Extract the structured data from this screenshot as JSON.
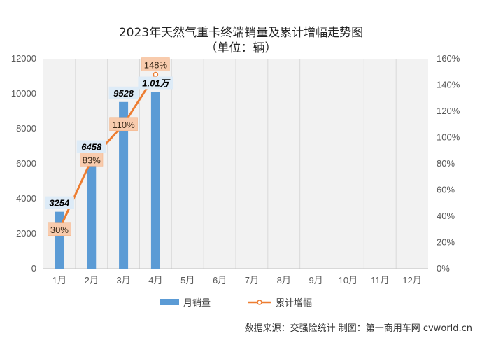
{
  "chart_data": {
    "type": "bar+line",
    "title": "2023年天然气重卡终端销量及累计增幅走势图",
    "subtitle": "（单位：辆）",
    "categories": [
      "1月",
      "2月",
      "3月",
      "4月",
      "5月",
      "6月",
      "7月",
      "8月",
      "9月",
      "10月",
      "11月",
      "12月"
    ],
    "series": [
      {
        "name": "月销量",
        "type": "bar",
        "axis": "left",
        "color": "#5b9bd5",
        "values": [
          3254,
          6458,
          9528,
          10100,
          null,
          null,
          null,
          null,
          null,
          null,
          null,
          null
        ],
        "labels": [
          "3254",
          "6458",
          "9528",
          "1.01万",
          "",
          "",
          "",
          "",
          "",
          "",
          "",
          ""
        ]
      },
      {
        "name": "累计增幅",
        "type": "line",
        "axis": "right",
        "color": "#ed7d31",
        "values": [
          30,
          83,
          110,
          148,
          null,
          null,
          null,
          null,
          null,
          null,
          null,
          null
        ],
        "labels": [
          "30%",
          "83%",
          "110%",
          "148%",
          "",
          "",
          "",
          "",
          "",
          "",
          "",
          ""
        ]
      }
    ],
    "y_left": {
      "min": 0,
      "max": 12000,
      "ticks": [
        "0",
        "2000",
        "4000",
        "6000",
        "8000",
        "10000",
        "12000"
      ]
    },
    "y_right": {
      "min": 0,
      "max": 160,
      "ticks": [
        "0%",
        "20%",
        "40%",
        "60%",
        "80%",
        "100%",
        "120%",
        "140%",
        "160%"
      ]
    },
    "legend_position": "bottom",
    "grid": "vertical"
  },
  "source_text": "数据来源：交强险统计  制图：第一商用车网 cvworld.cn"
}
